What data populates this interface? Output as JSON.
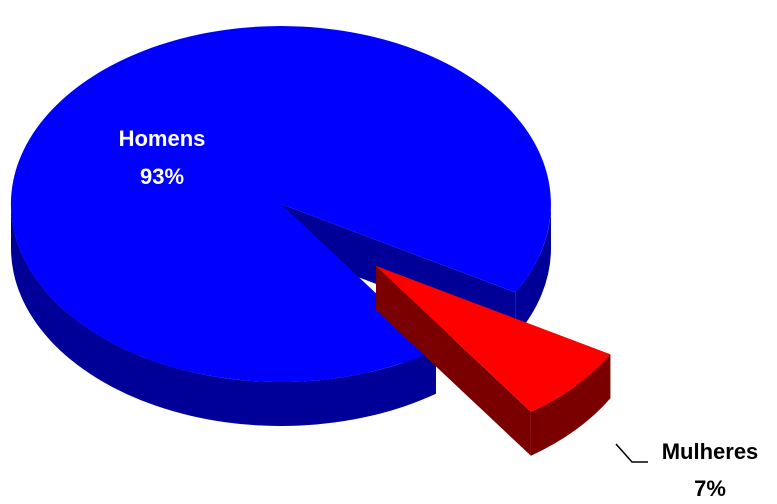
{
  "chart_data": {
    "type": "pie",
    "style": "3d-exploded",
    "slices": [
      {
        "label": "Homens",
        "value": 93,
        "value_label": "93%",
        "color": "#0000ff",
        "side_color": "#000099",
        "label_color": "#ffffff"
      },
      {
        "label": "Mulheres",
        "value": 7,
        "value_label": "7%",
        "color": "#ff0000",
        "side_color": "#7a0000",
        "label_color": "#000000"
      }
    ]
  }
}
